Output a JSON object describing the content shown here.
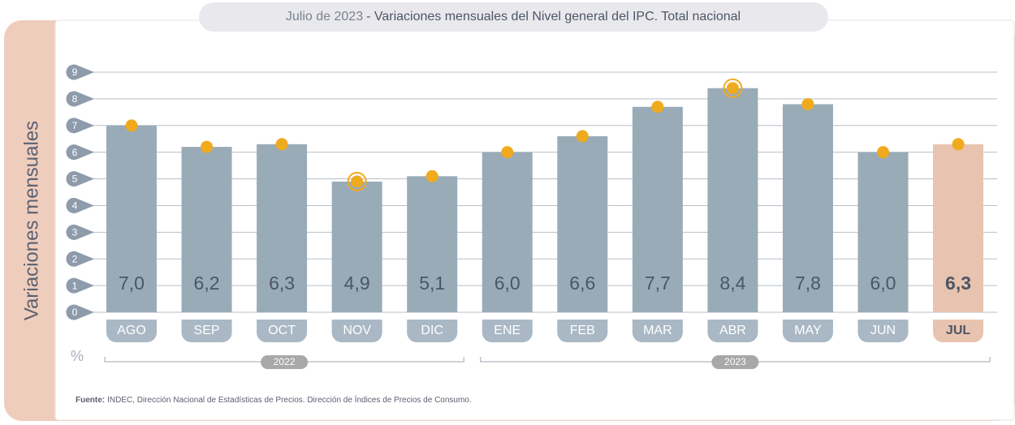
{
  "chart_data": {
    "type": "bar",
    "title_date": "Julio de 2023",
    "title": "- Variaciones mensuales del Nivel general del IPC. Total nacional",
    "y_label": "Variaciones mensuales",
    "unit": "%",
    "categories": [
      "AGO",
      "SEP",
      "OCT",
      "NOV",
      "DIC",
      "ENE",
      "FEB",
      "MAR",
      "ABR",
      "MAY",
      "JUN",
      "JUL"
    ],
    "values": [
      7.0,
      6.2,
      6.3,
      4.9,
      5.1,
      6.0,
      6.6,
      7.7,
      8.4,
      7.8,
      6.0,
      6.3
    ],
    "value_labels": [
      "7,0",
      "6,2",
      "6,3",
      "4,9",
      "5,1",
      "6,0",
      "6,6",
      "7,7",
      "8,4",
      "7,8",
      "6,0",
      "6,3"
    ],
    "color": "#9aabb8",
    "highlight_color": "#e8c4b0",
    "highlight_last": true,
    "dot_color": "#f0aa1e",
    "ringed": [
      3,
      8
    ],
    "ylim": [
      0,
      9
    ],
    "yticks": [
      0,
      1,
      2,
      3,
      4,
      5,
      6,
      7,
      8,
      9
    ],
    "grid": true,
    "groups": [
      {
        "name": "2022",
        "count": 5
      },
      {
        "name": "2023",
        "count": 7
      }
    ],
    "source_label": "Fuente:",
    "source": "INDEC, Dirección Nacional de Estadísticas de Precios. Dirección de Índices de Precios de Consumo."
  }
}
